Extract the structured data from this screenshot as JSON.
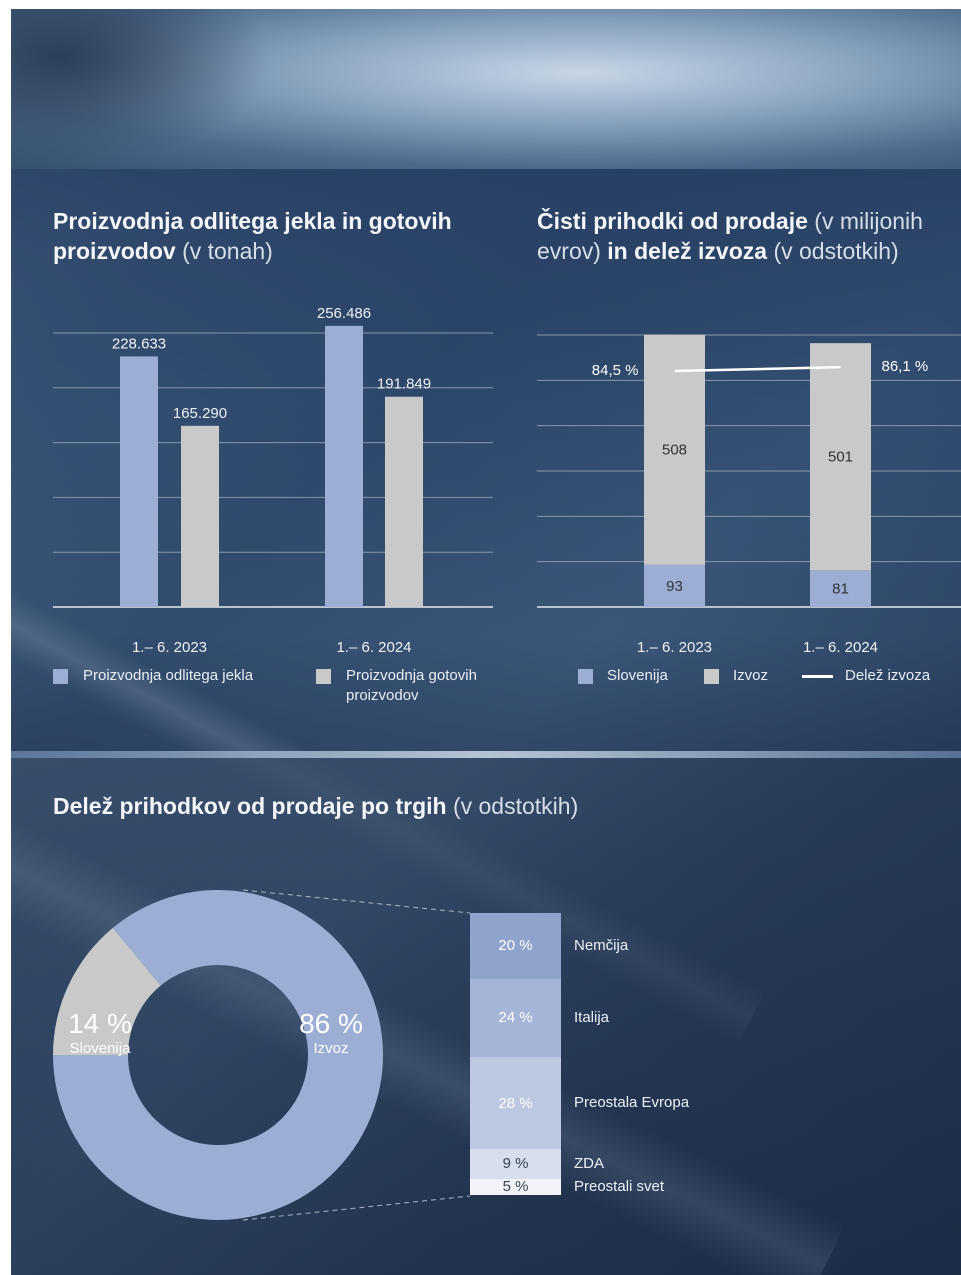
{
  "section1": {
    "chart1_title_bold": "Proizvodnja odlitega jekla in gotovih proizvodov",
    "chart1_title_light": "(v tonah)",
    "chart2_title_bold1": "Čisti prihodki od prodaje",
    "chart2_title_light1": "(v milijonih evrov)",
    "chart2_title_bold2": "in delež izvoza",
    "chart2_title_light2": "(v odstotkih)"
  },
  "section2": {
    "title_bold": "Delež prihodkov od prodaje po trgih",
    "title_light": "(v odstotkih)"
  },
  "chart_data": [
    {
      "type": "bar",
      "categories": [
        "1.– 6. 2023",
        "1.– 6. 2024"
      ],
      "series": [
        {
          "name": "Proizvodnja odlitega jekla",
          "values": [
            228633,
            256486
          ],
          "labels": [
            "228.633",
            "256.486"
          ],
          "color": "#9caed3"
        },
        {
          "name": "Proizvodnja gotovih proizvodov",
          "values": [
            165290,
            191849
          ],
          "labels": [
            "165.290",
            "191.849"
          ],
          "color": "#c9c9c9"
        }
      ],
      "ylim": [
        0,
        250000
      ],
      "grid": true,
      "legend": "bottom"
    },
    {
      "type": "bar",
      "stacked": true,
      "categories": [
        "1.– 6. 2023",
        "1.– 6. 2024"
      ],
      "series": [
        {
          "name": "Slovenija",
          "values": [
            93,
            81
          ],
          "labels": [
            "93",
            "81"
          ],
          "color": "#9caed3"
        },
        {
          "name": "Izvoz",
          "values": [
            508,
            501
          ],
          "labels": [
            "508",
            "501"
          ],
          "color": "#c9c9c9"
        }
      ],
      "line": {
        "name": "Delež izvoza",
        "values": [
          84.5,
          86.1
        ],
        "labels": [
          "84,5 %",
          "86,1 %"
        ],
        "color": "#ffffff"
      },
      "ylim": [
        0,
        600
      ],
      "grid": true,
      "legend": "bottom"
    },
    {
      "type": "pie",
      "donut": true,
      "slices": [
        {
          "name": "Izvoz",
          "value": 86,
          "label": "86 %",
          "color": "#9caed3"
        },
        {
          "name": "Slovenija",
          "value": 14,
          "label": "14 %",
          "color": "#c9c9c9"
        }
      ]
    },
    {
      "type": "bar",
      "stacked": true,
      "orientation": "vertical-breakdown",
      "of": "Izvoz",
      "categories": [
        "Nemčija",
        "Italija",
        "Preostala Evropa",
        "ZDA",
        "Preostali svet"
      ],
      "values": [
        20,
        24,
        28,
        9,
        5
      ],
      "labels": [
        "20 %",
        "24 %",
        "28 %",
        "9 %",
        "5 %"
      ],
      "colors": [
        "#8fa4cc",
        "#a5b5d8",
        "#bdc8e2",
        "#d7deee",
        "#f1f3f8"
      ]
    }
  ]
}
